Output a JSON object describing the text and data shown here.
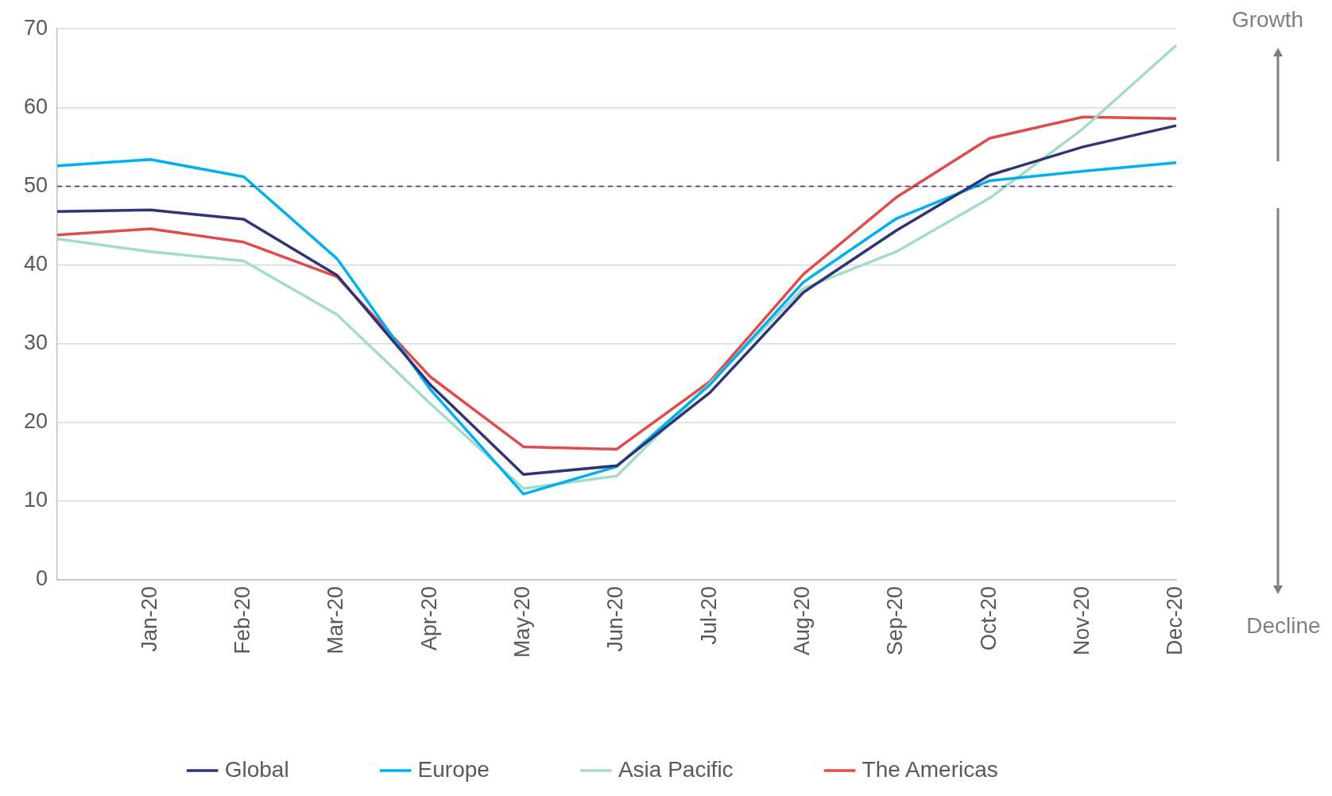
{
  "chart_data": {
    "type": "line",
    "categories": [
      null,
      "Jan-20",
      "Feb-20",
      "Mar-20",
      "Apr-20",
      "May-20",
      "Jun-20",
      "Jul-20",
      "Aug-20",
      "Sep-20",
      "Oct-20",
      "Nov-20",
      "Dec-20"
    ],
    "ylim": [
      0,
      70
    ],
    "yticks": [
      0,
      10,
      20,
      30,
      40,
      50,
      60,
      70
    ],
    "series": [
      {
        "name": "Global",
        "color": "#2e3475",
        "values": [
          46.8,
          47.0,
          45.8,
          38.7,
          24.8,
          13.4,
          14.5,
          23.8,
          36.5,
          44.4,
          51.4,
          55.0,
          57.7
        ]
      },
      {
        "name": "Europe",
        "color": "#00b0f0",
        "values": [
          52.6,
          53.4,
          51.2,
          40.8,
          24.2,
          10.9,
          14.4,
          24.8,
          37.8,
          45.9,
          50.7,
          51.9,
          53.0
        ]
      },
      {
        "name": "Asia Pacific",
        "color": "#a3dcc8",
        "values": [
          43.3,
          41.7,
          40.5,
          33.7,
          22.4,
          11.6,
          13.2,
          25.0,
          37.0,
          41.7,
          48.5,
          57.3,
          67.9
        ]
      },
      {
        "name": "The Americas",
        "color": "#e04b4b",
        "values": [
          43.8,
          44.6,
          42.9,
          38.5,
          25.8,
          16.9,
          16.6,
          25.2,
          38.8,
          48.6,
          56.1,
          58.8,
          58.6
        ]
      }
    ],
    "ref_lines": [
      {
        "axis": "y",
        "value": 50,
        "color": "#2e3475",
        "line_style": "dashed"
      }
    ],
    "annotations": [
      "Growth",
      "Decline"
    ],
    "grid": "y",
    "legend": "bottom",
    "marker": "none",
    "line_style": "solid"
  }
}
